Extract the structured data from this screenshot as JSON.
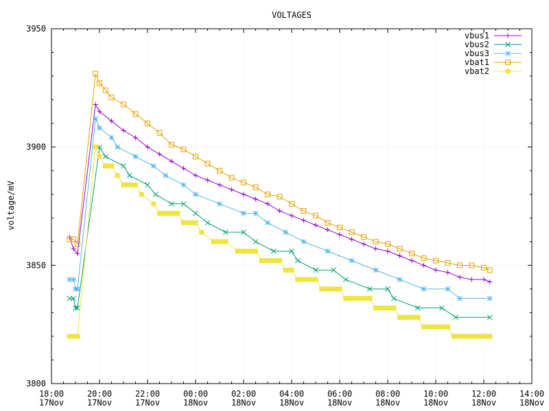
{
  "chart_data": {
    "type": "line",
    "title": "VOLTAGES",
    "xlabel": "",
    "ylabel": "voltage/mV",
    "ylim": [
      3800,
      3950
    ],
    "xlim": [
      "2017-11-17 18:00",
      "2017-11-18 14:00"
    ],
    "grid": true,
    "legend_position": "top-right",
    "y_ticks": [
      "3800",
      "3850",
      "3900",
      "3950"
    ],
    "x_ticks": [
      {
        "time": "2017-11-17 18:00",
        "line1": "18:00",
        "line2": "17Nov"
      },
      {
        "time": "2017-11-17 20:00",
        "line1": "20:00",
        "line2": "17Nov"
      },
      {
        "time": "2017-11-17 22:00",
        "line1": "22:00",
        "line2": "17Nov"
      },
      {
        "time": "2017-11-18 00:00",
        "line1": "00:00",
        "line2": "18Nov"
      },
      {
        "time": "2017-11-18 02:00",
        "line1": "02:00",
        "line2": "18Nov"
      },
      {
        "time": "2017-11-18 04:00",
        "line1": "04:00",
        "line2": "18Nov"
      },
      {
        "time": "2017-11-18 06:00",
        "line1": "06:00",
        "line2": "18Nov"
      },
      {
        "time": "2017-11-18 08:00",
        "line1": "08:00",
        "line2": "18Nov"
      },
      {
        "time": "2017-11-18 10:00",
        "line1": "10:00",
        "line2": "18Nov"
      },
      {
        "time": "2017-11-18 12:00",
        "line1": "12:00",
        "line2": "18Nov"
      },
      {
        "time": "2017-11-18 14:00",
        "line1": "14:00",
        "line2": "18Nov"
      }
    ],
    "series": [
      {
        "name": "vbus1",
        "color": "#9400d3",
        "marker": "plus",
        "points": [
          [
            "2017-11-17 18:45",
            3862
          ],
          [
            "2017-11-17 18:55",
            3857
          ],
          [
            "2017-11-17 19:05",
            3855
          ],
          [
            "2017-11-17 19:50",
            3918
          ],
          [
            "2017-11-17 20:00",
            3915
          ],
          [
            "2017-11-17 20:30",
            3911
          ],
          [
            "2017-11-17 21:00",
            3907
          ],
          [
            "2017-11-17 21:30",
            3904
          ],
          [
            "2017-11-17 22:00",
            3900
          ],
          [
            "2017-11-17 22:30",
            3897
          ],
          [
            "2017-11-17 23:00",
            3894
          ],
          [
            "2017-11-17 23:30",
            3891
          ],
          [
            "2017-11-18 00:00",
            3888
          ],
          [
            "2017-11-18 00:30",
            3886
          ],
          [
            "2017-11-18 01:00",
            3884
          ],
          [
            "2017-11-18 01:30",
            3882
          ],
          [
            "2017-11-18 02:00",
            3880
          ],
          [
            "2017-11-18 02:30",
            3878
          ],
          [
            "2017-11-18 03:00",
            3876
          ],
          [
            "2017-11-18 03:30",
            3873
          ],
          [
            "2017-11-18 04:00",
            3871
          ],
          [
            "2017-11-18 04:30",
            3869
          ],
          [
            "2017-11-18 05:00",
            3867
          ],
          [
            "2017-11-18 05:30",
            3865
          ],
          [
            "2017-11-18 06:00",
            3863
          ],
          [
            "2017-11-18 06:30",
            3861
          ],
          [
            "2017-11-18 07:00",
            3859
          ],
          [
            "2017-11-18 07:30",
            3857
          ],
          [
            "2017-11-18 08:00",
            3856
          ],
          [
            "2017-11-18 08:30",
            3854
          ],
          [
            "2017-11-18 09:00",
            3852
          ],
          [
            "2017-11-18 09:30",
            3850
          ],
          [
            "2017-11-18 10:00",
            3848
          ],
          [
            "2017-11-18 10:30",
            3847
          ],
          [
            "2017-11-18 11:00",
            3845
          ],
          [
            "2017-11-18 11:30",
            3844
          ],
          [
            "2017-11-18 12:00",
            3844
          ],
          [
            "2017-11-18 12:15",
            3843
          ]
        ]
      },
      {
        "name": "vbus2",
        "color": "#009e73",
        "marker": "cross",
        "points": [
          [
            "2017-11-17 18:45",
            3836
          ],
          [
            "2017-11-17 18:55",
            3836
          ],
          [
            "2017-11-17 19:00",
            3832
          ],
          [
            "2017-11-17 19:05",
            3832
          ],
          [
            "2017-11-17 20:00",
            3900
          ],
          [
            "2017-11-17 20:15",
            3896
          ],
          [
            "2017-11-17 21:00",
            3892
          ],
          [
            "2017-11-17 21:15",
            3888
          ],
          [
            "2017-11-17 22:00",
            3884
          ],
          [
            "2017-11-17 22:20",
            3880
          ],
          [
            "2017-11-17 23:00",
            3876
          ],
          [
            "2017-11-17 23:30",
            3876
          ],
          [
            "2017-11-18 00:00",
            3872
          ],
          [
            "2017-11-18 00:30",
            3868
          ],
          [
            "2017-11-18 01:15",
            3864
          ],
          [
            "2017-11-18 02:00",
            3864
          ],
          [
            "2017-11-18 02:30",
            3860
          ],
          [
            "2017-11-18 03:15",
            3856
          ],
          [
            "2017-11-18 04:00",
            3856
          ],
          [
            "2017-11-18 04:15",
            3852
          ],
          [
            "2017-11-18 05:00",
            3848
          ],
          [
            "2017-11-18 05:45",
            3848
          ],
          [
            "2017-11-18 06:15",
            3844
          ],
          [
            "2017-11-18 07:15",
            3840
          ],
          [
            "2017-11-18 08:00",
            3840
          ],
          [
            "2017-11-18 08:15",
            3836
          ],
          [
            "2017-11-18 09:15",
            3832
          ],
          [
            "2017-11-18 10:15",
            3832
          ],
          [
            "2017-11-18 10:50",
            3828
          ],
          [
            "2017-11-18 12:15",
            3828
          ]
        ]
      },
      {
        "name": "vbus3",
        "color": "#56b4e9",
        "marker": "star",
        "points": [
          [
            "2017-11-17 18:45",
            3844
          ],
          [
            "2017-11-17 18:55",
            3844
          ],
          [
            "2017-11-17 19:00",
            3840
          ],
          [
            "2017-11-17 19:05",
            3840
          ],
          [
            "2017-11-17 19:50",
            3912
          ],
          [
            "2017-11-17 20:00",
            3908
          ],
          [
            "2017-11-17 20:30",
            3904
          ],
          [
            "2017-11-17 20:45",
            3900
          ],
          [
            "2017-11-17 21:30",
            3896
          ],
          [
            "2017-11-17 22:15",
            3892
          ],
          [
            "2017-11-17 22:45",
            3888
          ],
          [
            "2017-11-17 23:30",
            3884
          ],
          [
            "2017-11-18 00:00",
            3880
          ],
          [
            "2017-11-18 01:00",
            3876
          ],
          [
            "2017-11-18 02:00",
            3872
          ],
          [
            "2017-11-18 02:30",
            3872
          ],
          [
            "2017-11-18 03:00",
            3868
          ],
          [
            "2017-11-18 03:45",
            3864
          ],
          [
            "2017-11-18 04:30",
            3860
          ],
          [
            "2017-11-18 05:30",
            3856
          ],
          [
            "2017-11-18 06:30",
            3852
          ],
          [
            "2017-11-18 07:30",
            3848
          ],
          [
            "2017-11-18 08:30",
            3844
          ],
          [
            "2017-11-18 09:30",
            3840
          ],
          [
            "2017-11-18 10:30",
            3840
          ],
          [
            "2017-11-18 11:00",
            3836
          ],
          [
            "2017-11-18 12:15",
            3836
          ]
        ]
      },
      {
        "name": "vbat1",
        "color": "#e69f00",
        "marker": "square",
        "points": [
          [
            "2017-11-17 18:45",
            3861
          ],
          [
            "2017-11-17 18:55",
            3861
          ],
          [
            "2017-11-17 19:05",
            3859
          ],
          [
            "2017-11-17 19:50",
            3931
          ],
          [
            "2017-11-17 20:00",
            3927
          ],
          [
            "2017-11-17 20:15",
            3924
          ],
          [
            "2017-11-17 20:30",
            3921
          ],
          [
            "2017-11-17 21:00",
            3918
          ],
          [
            "2017-11-17 21:30",
            3914
          ],
          [
            "2017-11-17 22:00",
            3910
          ],
          [
            "2017-11-17 22:30",
            3906
          ],
          [
            "2017-11-17 23:00",
            3901
          ],
          [
            "2017-11-17 23:30",
            3899
          ],
          [
            "2017-11-18 00:00",
            3896
          ],
          [
            "2017-11-18 00:30",
            3893
          ],
          [
            "2017-11-18 01:00",
            3890
          ],
          [
            "2017-11-18 01:30",
            3887
          ],
          [
            "2017-11-18 02:00",
            3885
          ],
          [
            "2017-11-18 02:30",
            3883
          ],
          [
            "2017-11-18 03:00",
            3880
          ],
          [
            "2017-11-18 03:30",
            3879
          ],
          [
            "2017-11-18 04:00",
            3876
          ],
          [
            "2017-11-18 04:30",
            3873
          ],
          [
            "2017-11-18 05:00",
            3871
          ],
          [
            "2017-11-18 05:30",
            3868
          ],
          [
            "2017-11-18 06:00",
            3866
          ],
          [
            "2017-11-18 06:30",
            3864
          ],
          [
            "2017-11-18 07:00",
            3862
          ],
          [
            "2017-11-18 07:30",
            3860
          ],
          [
            "2017-11-18 08:00",
            3859
          ],
          [
            "2017-11-18 08:30",
            3857
          ],
          [
            "2017-11-18 09:00",
            3855
          ],
          [
            "2017-11-18 09:30",
            3853
          ],
          [
            "2017-11-18 10:00",
            3852
          ],
          [
            "2017-11-18 10:30",
            3851
          ],
          [
            "2017-11-18 11:00",
            3850
          ],
          [
            "2017-11-18 11:30",
            3850
          ],
          [
            "2017-11-18 12:00",
            3849
          ],
          [
            "2017-11-18 12:15",
            3848
          ]
        ]
      },
      {
        "name": "vbat2",
        "color": "#f0e442",
        "marker": "filled-square",
        "points": [
          [
            "2017-11-17 18:45",
            3820
          ],
          [
            "2017-11-17 19:05",
            3820
          ],
          [
            "2017-11-17 19:50",
            3900
          ],
          [
            "2017-11-17 20:00",
            3896
          ],
          [
            "2017-11-17 20:15",
            3892
          ],
          [
            "2017-11-17 20:30",
            3892
          ],
          [
            "2017-11-17 20:45",
            3888
          ],
          [
            "2017-11-17 21:00",
            3884
          ],
          [
            "2017-11-17 21:30",
            3884
          ],
          [
            "2017-11-17 21:45",
            3880
          ],
          [
            "2017-11-17 22:15",
            3876
          ],
          [
            "2017-11-17 22:30",
            3872
          ],
          [
            "2017-11-17 23:15",
            3872
          ],
          [
            "2017-11-17 23:30",
            3868
          ],
          [
            "2017-11-18 00:00",
            3868
          ],
          [
            "2017-11-18 00:15",
            3864
          ],
          [
            "2017-11-18 00:45",
            3860
          ],
          [
            "2017-11-18 01:15",
            3860
          ],
          [
            "2017-11-18 01:45",
            3856
          ],
          [
            "2017-11-18 02:30",
            3856
          ],
          [
            "2017-11-18 02:45",
            3852
          ],
          [
            "2017-11-18 03:30",
            3852
          ],
          [
            "2017-11-18 03:45",
            3848
          ],
          [
            "2017-11-18 04:00",
            3848
          ],
          [
            "2017-11-18 04:15",
            3844
          ],
          [
            "2017-11-18 05:00",
            3844
          ],
          [
            "2017-11-18 05:15",
            3840
          ],
          [
            "2017-11-18 06:00",
            3840
          ],
          [
            "2017-11-18 06:15",
            3836
          ],
          [
            "2017-11-18 07:15",
            3836
          ],
          [
            "2017-11-18 07:30",
            3832
          ],
          [
            "2017-11-18 08:15",
            3832
          ],
          [
            "2017-11-18 08:30",
            3828
          ],
          [
            "2017-11-18 09:15",
            3828
          ],
          [
            "2017-11-18 09:30",
            3824
          ],
          [
            "2017-11-18 10:30",
            3824
          ],
          [
            "2017-11-18 10:45",
            3820
          ],
          [
            "2017-11-18 12:15",
            3820
          ]
        ]
      }
    ]
  }
}
